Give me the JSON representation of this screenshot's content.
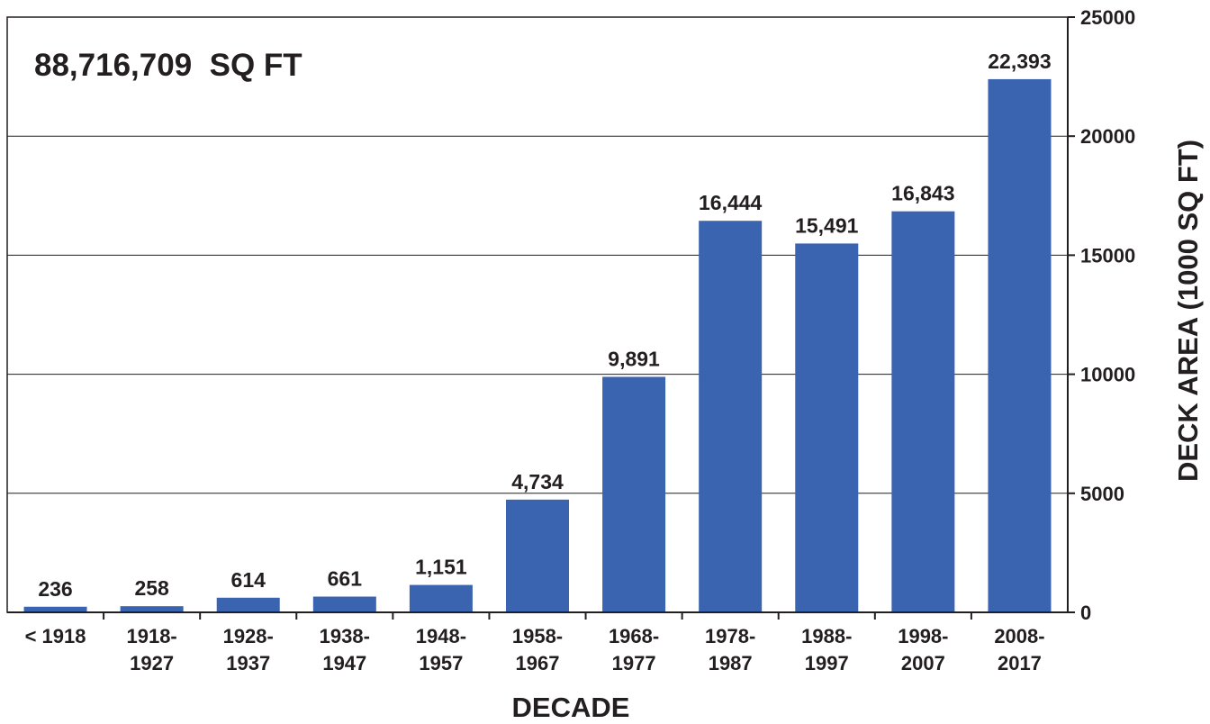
{
  "chart_data": {
    "type": "bar",
    "title": "",
    "annotation": "88,716,709  SQ FT",
    "xlabel": "DECADE",
    "ylabel": "DECK AREA (1000 SQ FT)",
    "ylim": [
      0,
      25000
    ],
    "yticks": [
      "0",
      "5000",
      "10000",
      "15000",
      "20000",
      "25000"
    ],
    "y_axis_side": "right",
    "grid": "horizontal",
    "bar_color": "#3a64b0",
    "categories": [
      "< 1918",
      "1918-1927",
      "1928-1937",
      "1938-1947",
      "1948-1957",
      "1958-1967",
      "1968-1977",
      "1978-1987",
      "1988-1997",
      "1998-2007",
      "2008-2017"
    ],
    "category_lines": [
      [
        "< 1918"
      ],
      [
        "1918-",
        "1927"
      ],
      [
        "1928-",
        "1937"
      ],
      [
        "1938-",
        "1947"
      ],
      [
        "1948-",
        "1957"
      ],
      [
        "1958-",
        "1967"
      ],
      [
        "1968-",
        "1977"
      ],
      [
        "1978-",
        "1987"
      ],
      [
        "1988-",
        "1997"
      ],
      [
        "1998-",
        "2007"
      ],
      [
        "2008-",
        "2017"
      ]
    ],
    "values": [
      236,
      258,
      614,
      661,
      1151,
      4734,
      9891,
      16444,
      15491,
      16843,
      22393
    ],
    "value_labels": [
      "236",
      "258",
      "614",
      "661",
      "1,151",
      "4,734",
      "9,891",
      "16,444",
      "15,491",
      "16,843",
      "22,393"
    ]
  }
}
